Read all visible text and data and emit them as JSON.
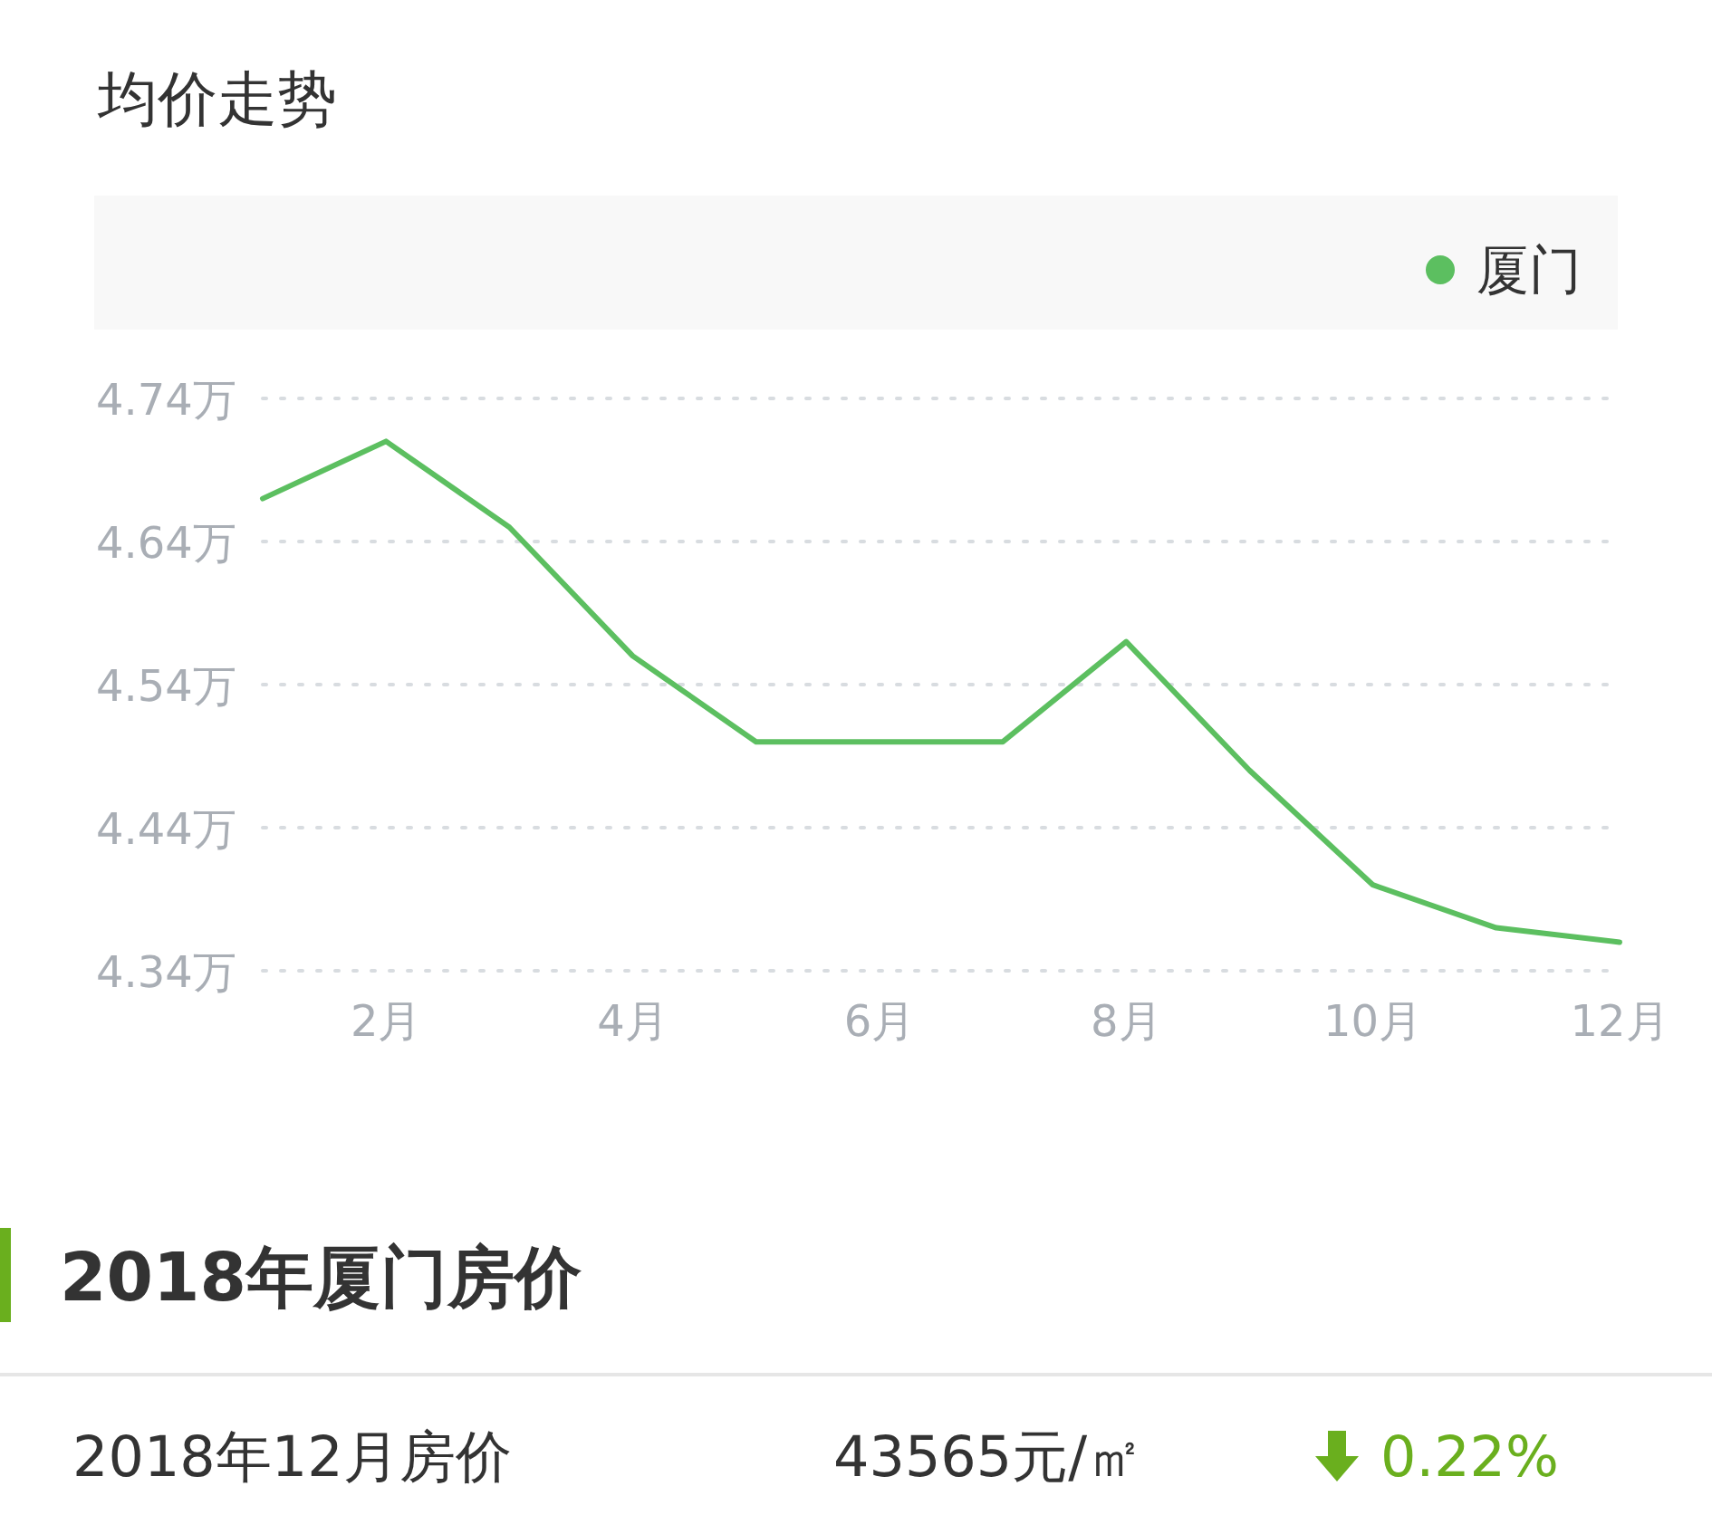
{
  "chart_data": {
    "type": "line",
    "title": "均价走势",
    "categories": [
      null,
      "2月",
      null,
      "4月",
      null,
      "6月",
      null,
      "8月",
      null,
      "10月",
      null,
      "12月"
    ],
    "series": [
      {
        "name": "厦门",
        "color": "#5cbf60",
        "values": [
          4.67,
          4.71,
          4.65,
          4.56,
          4.5,
          4.5,
          4.5,
          4.57,
          4.48,
          4.4,
          4.37,
          4.36
        ]
      }
    ],
    "ylim": [
      4.34,
      4.74
    ],
    "yticks": [
      {
        "value": 4.34,
        "label": "4.34万"
      },
      {
        "value": 4.44,
        "label": "4.44万"
      },
      {
        "value": 4.54,
        "label": "4.54万"
      },
      {
        "value": 4.64,
        "label": "4.64万"
      },
      {
        "value": 4.74,
        "label": "4.74万"
      }
    ],
    "grid": "y",
    "legend": "top right",
    "annotations": [
      "2018年厦门房价",
      "2018年12月房价",
      "43565元/㎡",
      "0.22%"
    ]
  }
}
